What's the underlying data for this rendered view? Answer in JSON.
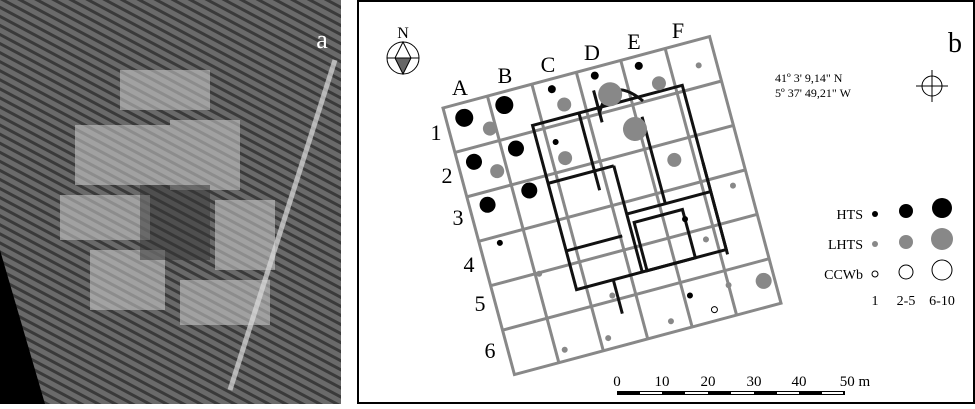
{
  "panels": {
    "a": {
      "label": "a"
    },
    "b": {
      "label": "b"
    }
  },
  "north": "N",
  "columns": [
    "A",
    "B",
    "C",
    "D",
    "E",
    "F"
  ],
  "rows": [
    "1",
    "2",
    "3",
    "4",
    "5",
    "6"
  ],
  "coordinates": [
    "41º 3' 9,14\" N",
    "5º 37' 49,21\" W"
  ],
  "legend": {
    "items": [
      "HTS",
      "LHTS",
      "CCWb"
    ],
    "sizes": [
      "1",
      "2-5",
      "6-10"
    ]
  },
  "scale_bar": {
    "labels": [
      "0",
      "10",
      "20",
      "30",
      "40",
      "50 m"
    ]
  }
}
